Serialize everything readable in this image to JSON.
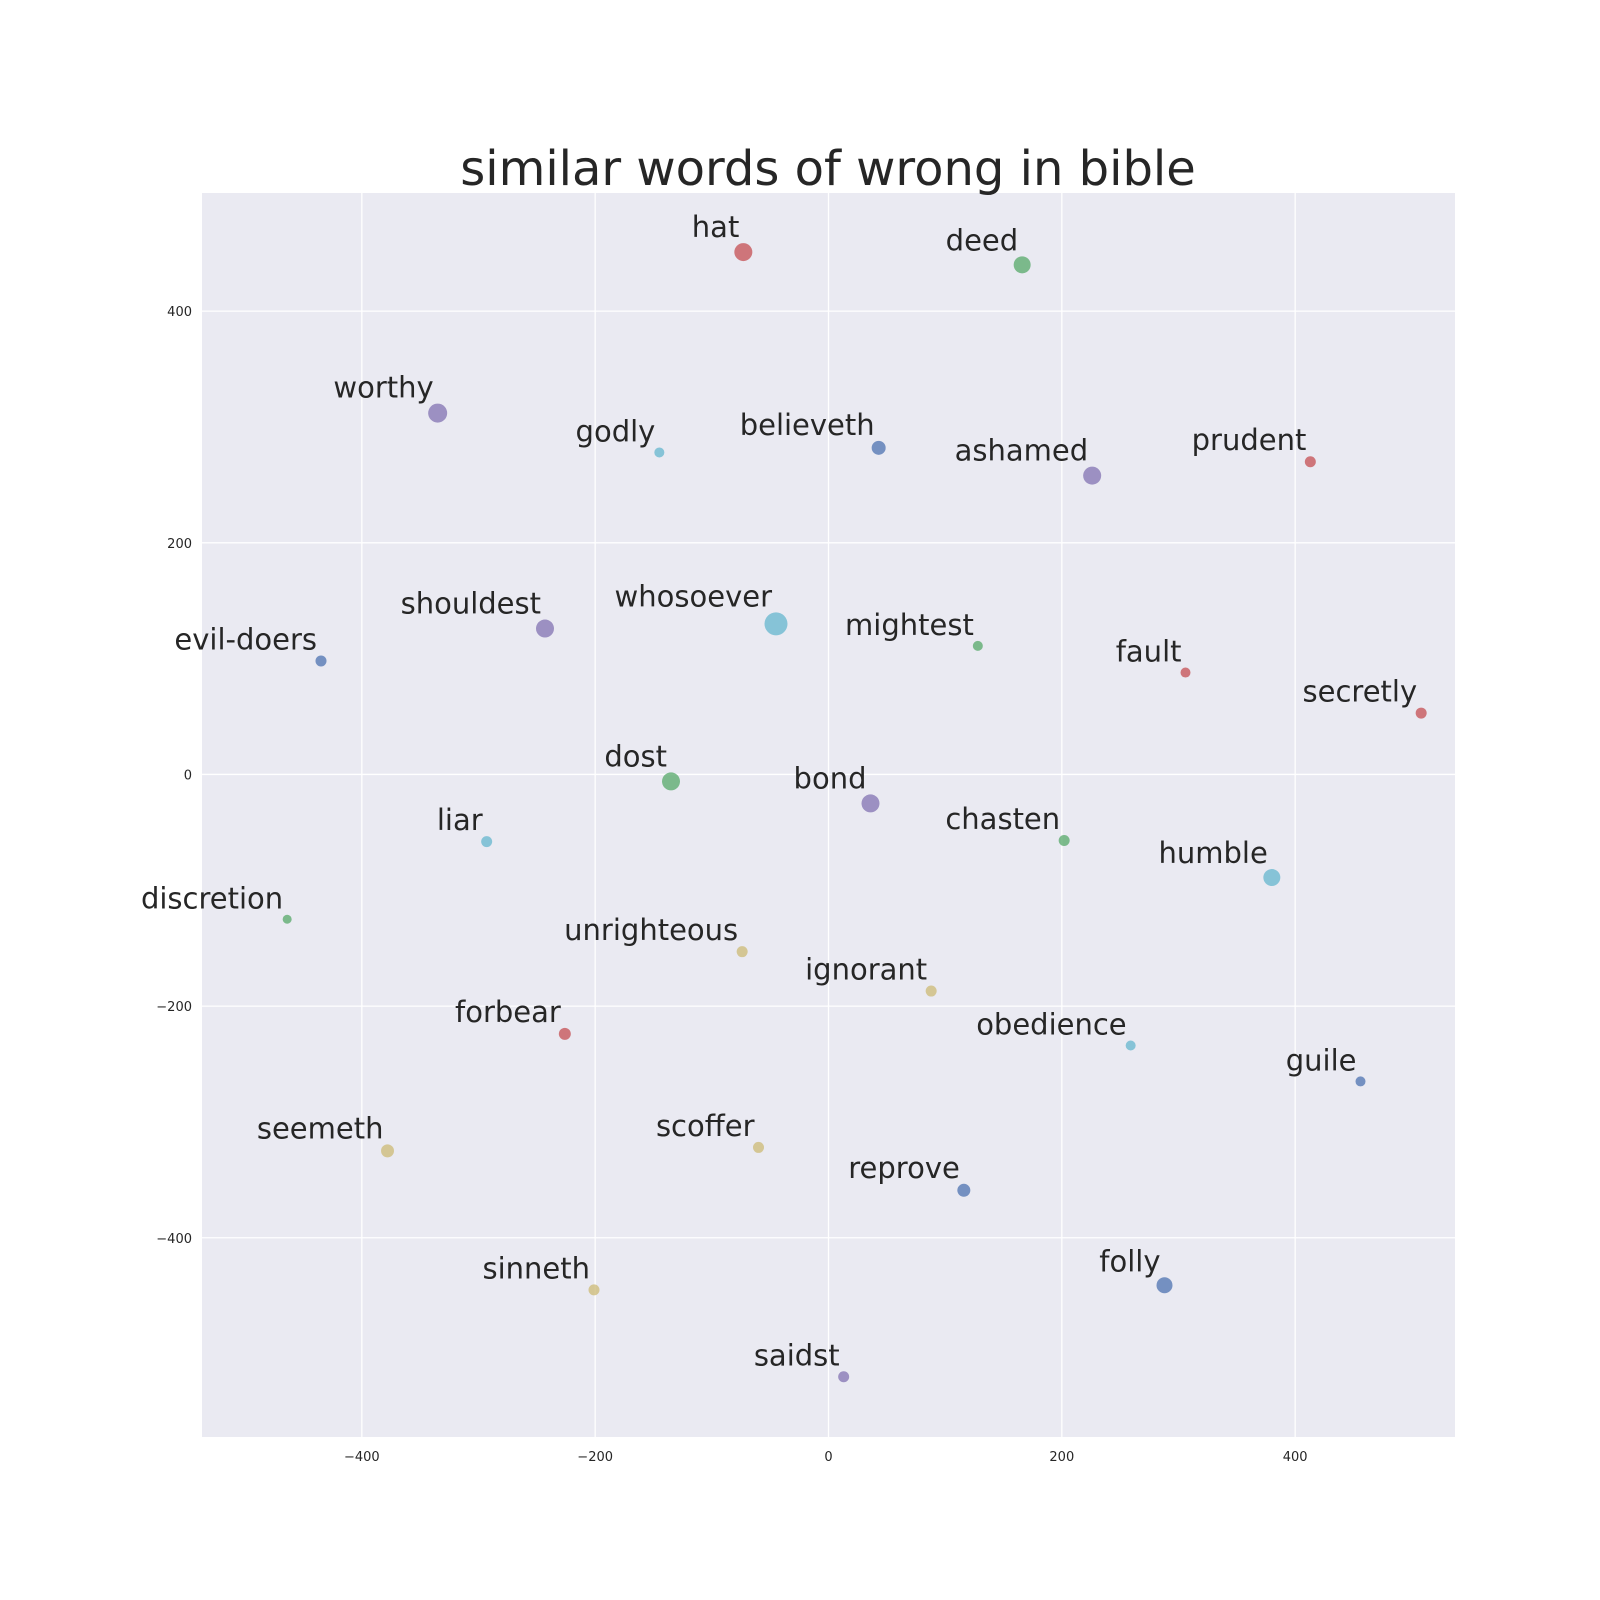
{
  "chart_data": {
    "type": "scatter",
    "title": "similar words of wrong in bible",
    "xlabel": "",
    "ylabel": "",
    "xlim": [
      -537,
      537
    ],
    "ylim": [
      -572,
      502
    ],
    "grid": true,
    "xticks": [
      -400,
      -200,
      0,
      200,
      400
    ],
    "yticks": [
      400,
      200,
      0,
      -200,
      -400
    ],
    "xtick_labels": [
      "−400",
      "−200",
      "0",
      "200",
      "400"
    ],
    "ytick_labels": [
      "400",
      "200",
      "0",
      "−200",
      "−400"
    ],
    "colors": {
      "background": "#eaeaf2",
      "red": "#c44e52",
      "green": "#55a868",
      "blue": "#4c72b0",
      "purple": "#8172b2",
      "cyan": "#64b5cd",
      "tan": "#ccb974"
    },
    "points": [
      {
        "label": "hat",
        "x": -73,
        "y": 451,
        "size": 9,
        "color": "red"
      },
      {
        "label": "deed",
        "x": 166,
        "y": 440,
        "size": 8.5,
        "color": "green"
      },
      {
        "label": "worthy",
        "x": -335,
        "y": 312,
        "size": 9.5,
        "color": "purple"
      },
      {
        "label": "godly",
        "x": -145,
        "y": 278,
        "size": 5,
        "color": "cyan"
      },
      {
        "label": "believeth",
        "x": 43,
        "y": 282,
        "size": 7,
        "color": "blue"
      },
      {
        "label": "ashamed",
        "x": 226,
        "y": 258,
        "size": 9,
        "color": "purple"
      },
      {
        "label": "prudent",
        "x": 413,
        "y": 270,
        "size": 5.5,
        "color": "red"
      },
      {
        "label": "shouldest",
        "x": -243,
        "y": 126,
        "size": 9,
        "color": "purple"
      },
      {
        "label": "whosoever",
        "x": -45,
        "y": 130,
        "size": 11.5,
        "color": "cyan"
      },
      {
        "label": "mightest",
        "x": 128,
        "y": 111,
        "size": 5,
        "color": "green"
      },
      {
        "label": "evil-doers",
        "x": -435,
        "y": 98,
        "size": 5.5,
        "color": "blue"
      },
      {
        "label": "fault",
        "x": 306,
        "y": 88,
        "size": 5,
        "color": "red"
      },
      {
        "label": "secretly",
        "x": 508,
        "y": 53,
        "size": 5.5,
        "color": "red"
      },
      {
        "label": "dost",
        "x": -135,
        "y": -6,
        "size": 9,
        "color": "green"
      },
      {
        "label": "bond",
        "x": 36,
        "y": -25,
        "size": 9,
        "color": "purple"
      },
      {
        "label": "liar",
        "x": -293,
        "y": -58,
        "size": 5.5,
        "color": "cyan"
      },
      {
        "label": "chasten",
        "x": 202,
        "y": -57,
        "size": 5.5,
        "color": "green"
      },
      {
        "label": "humble",
        "x": 380,
        "y": -89,
        "size": 8.5,
        "color": "cyan"
      },
      {
        "label": "discretion",
        "x": -464,
        "y": -125,
        "size": 4.5,
        "color": "green"
      },
      {
        "label": "unrighteous",
        "x": -74,
        "y": -153,
        "size": 5.5,
        "color": "tan"
      },
      {
        "label": "ignorant",
        "x": 88,
        "y": -187,
        "size": 5.5,
        "color": "tan"
      },
      {
        "label": "forbear",
        "x": -226,
        "y": -224,
        "size": 6,
        "color": "red"
      },
      {
        "label": "obedience",
        "x": 259,
        "y": -234,
        "size": 5,
        "color": "cyan"
      },
      {
        "label": "guile",
        "x": 456,
        "y": -265,
        "size": 5,
        "color": "blue"
      },
      {
        "label": "seemeth",
        "x": -378,
        "y": -325,
        "size": 6.5,
        "color": "tan"
      },
      {
        "label": "scoffer",
        "x": -60,
        "y": -322,
        "size": 5.5,
        "color": "tan"
      },
      {
        "label": "reprove",
        "x": 116,
        "y": -359,
        "size": 6.5,
        "color": "blue"
      },
      {
        "label": "sinneth",
        "x": -201,
        "y": -445,
        "size": 5.5,
        "color": "tan"
      },
      {
        "label": "folly",
        "x": 288,
        "y": -441,
        "size": 8,
        "color": "blue"
      },
      {
        "label": "saidst",
        "x": 13,
        "y": -520,
        "size": 5.5,
        "color": "purple"
      }
    ]
  }
}
